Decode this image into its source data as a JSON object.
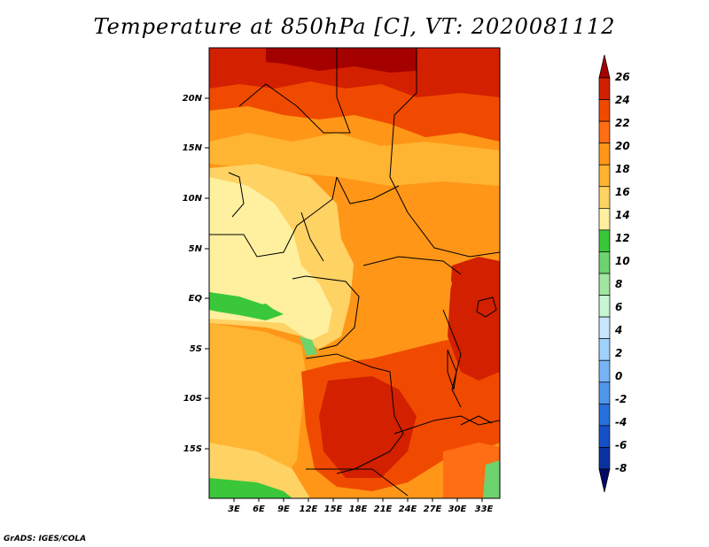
{
  "title": "Temperature at 850hPa [C], VT: 2020081112",
  "credit": "GrADS: IGES/COLA",
  "map": {
    "lon_ticks": [
      "3E",
      "6E",
      "9E",
      "12E",
      "15E",
      "18E",
      "21E",
      "24E",
      "27E",
      "30E",
      "33E"
    ],
    "lat_ticks": [
      "20N",
      "15N",
      "10N",
      "5N",
      "EQ",
      "5S",
      "10S",
      "15S"
    ]
  },
  "colorbar": {
    "labels": [
      "26",
      "24",
      "22",
      "20",
      "18",
      "16",
      "14",
      "12",
      "10",
      "8",
      "6",
      "4",
      "2",
      "0",
      "-2",
      "-4",
      "-6",
      "-8"
    ],
    "colors": [
      "#a50000",
      "#d22000",
      "#f04a00",
      "#ff6e14",
      "#ff9618",
      "#ffb432",
      "#ffd264",
      "#fff0a0",
      "#3ac83a",
      "#6ed26e",
      "#a0e6a0",
      "#c8f5d2",
      "#c8e6ff",
      "#a0d2ff",
      "#78b4f5",
      "#5096eb",
      "#2870dc",
      "#1450c8",
      "#0a32a0",
      "#000a64"
    ]
  },
  "chart_data": {
    "type": "heatmap",
    "title": "Temperature at 850hPa [C], VT: 2020081112",
    "units": "C",
    "valid_time": "2020081112",
    "colorbar_range": [
      -8,
      26
    ],
    "colorbar_step": 2,
    "regions": [
      {
        "area": "northern Sahara (north of 20N)",
        "value": 25
      },
      {
        "area": "Sahel 12N-17N",
        "value": 21
      },
      {
        "area": "Nigeria / Cameroon highlands 5N-10N",
        "value": 16
      },
      {
        "area": "Gabon / Congo coast EQ-5S",
        "value": 14
      },
      {
        "area": "Atlantic near EQ (green patches)",
        "value": 12
      },
      {
        "area": "central Congo basin",
        "value": 19
      },
      {
        "area": "Angola / Zambia 8S-17S",
        "value": 24
      },
      {
        "area": "East African Rift / Lake Victoria",
        "value": 24
      },
      {
        "area": "south Atlantic 5S-15S",
        "value": 19
      },
      {
        "area": "southwest corner near 19S",
        "value": 12
      }
    ]
  }
}
